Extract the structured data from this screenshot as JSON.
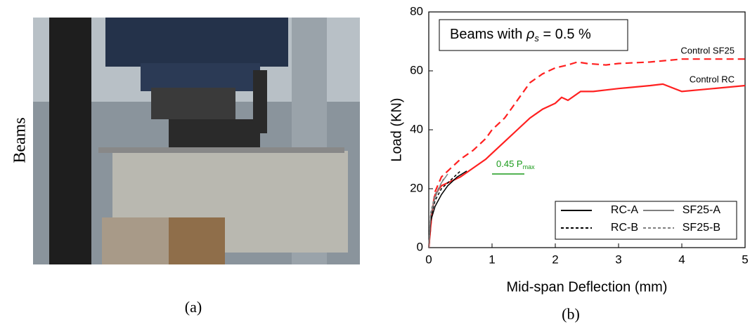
{
  "figure": {
    "photo_label": "Beams",
    "caption_a": "(a)",
    "caption_b": "(b)"
  },
  "chart_data": {
    "type": "line",
    "xlabel": "Mid-span Deflection (mm)",
    "ylabel": "Load (KN)",
    "xlim": [
      0,
      5
    ],
    "xticks": [
      0,
      1,
      2,
      3,
      4,
      5
    ],
    "ylim": [
      0,
      80
    ],
    "yticks": [
      0,
      20,
      40,
      60,
      80
    ],
    "box_annotation": {
      "before": "Beams with ",
      "symbol": "ρ",
      "subscript": "s",
      "after": " = 0.5 %"
    },
    "reference_annotation": {
      "text": "0.45 P",
      "subscript": "max",
      "color": "#1a9a1a"
    },
    "series": [
      {
        "name": "Control SF25",
        "color": "#ff2020",
        "dash": "dashed",
        "inline_label": true,
        "x": [
          0,
          0.05,
          0.1,
          0.2,
          0.3,
          0.5,
          0.7,
          0.9,
          1.0,
          1.2,
          1.4,
          1.6,
          1.8,
          2.0,
          2.2,
          2.35,
          2.5,
          2.8,
          3.0,
          3.5,
          4.0,
          4.5,
          5.0
        ],
        "values": [
          0,
          12,
          19,
          24,
          26,
          30,
          33,
          37,
          40,
          44,
          50,
          56,
          59,
          61,
          62,
          63,
          62.5,
          62,
          62.5,
          63,
          64,
          64,
          64
        ]
      },
      {
        "name": "Control RC",
        "color": "#ff2020",
        "dash": "solid",
        "inline_label": true,
        "x": [
          0,
          0.05,
          0.1,
          0.2,
          0.3,
          0.5,
          0.7,
          0.9,
          1.0,
          1.2,
          1.4,
          1.6,
          1.8,
          2.0,
          2.1,
          2.2,
          2.4,
          2.6,
          3.0,
          3.5,
          3.7,
          4.0,
          4.5,
          5.0
        ],
        "values": [
          0,
          12,
          18,
          21,
          22,
          24,
          27,
          30,
          32,
          36,
          40,
          44,
          47,
          49,
          51,
          50,
          53,
          53,
          54,
          55,
          55.5,
          53,
          54,
          55
        ]
      },
      {
        "name": "RC-A",
        "color": "#000000",
        "dash": "solid",
        "inline_label": false,
        "x": [
          0,
          0.03,
          0.1,
          0.2,
          0.3,
          0.45,
          0.6
        ],
        "values": [
          0,
          9,
          14,
          18,
          21,
          24,
          26
        ]
      },
      {
        "name": "RC-B",
        "color": "#000000",
        "dash": "dashed",
        "inline_label": false,
        "x": [
          0,
          0.03,
          0.1,
          0.2,
          0.3,
          0.4,
          0.5
        ],
        "values": [
          0,
          10,
          16,
          20,
          22,
          24,
          26
        ]
      },
      {
        "name": "SF25-A",
        "color": "#808080",
        "dash": "solid",
        "inline_label": false,
        "x": [
          0,
          0.03,
          0.1,
          0.2,
          0.3
        ],
        "values": [
          0,
          11,
          17,
          22,
          25
        ]
      },
      {
        "name": "SF25-B",
        "color": "#808080",
        "dash": "dashed",
        "inline_label": false,
        "x": [
          0,
          0.03,
          0.1,
          0.2,
          0.25
        ],
        "values": [
          0,
          12,
          18,
          22,
          24
        ]
      }
    ]
  }
}
